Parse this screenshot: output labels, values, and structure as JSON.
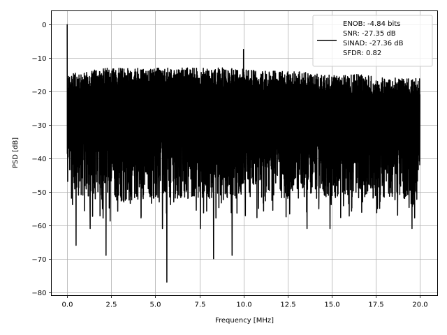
{
  "chart_data": {
    "type": "line",
    "title": "",
    "xlabel": "Frequency [MHz]",
    "ylabel": "PSD [dB]",
    "xlim": [
      -0.9,
      21.0
    ],
    "ylim": [
      -81,
      4
    ],
    "x_ticks": [
      0.0,
      2.5,
      5.0,
      7.5,
      10.0,
      12.5,
      15.0,
      17.5,
      20.0
    ],
    "x_tick_labels": [
      "0.0",
      "2.5",
      "5.0",
      "7.5",
      "10.0",
      "12.5",
      "15.0",
      "17.5",
      "20.0"
    ],
    "y_ticks": [
      0,
      -10,
      -20,
      -30,
      -40,
      -50,
      -60,
      -70,
      -80
    ],
    "y_tick_labels": [
      "0",
      "−10",
      "−20",
      "−30",
      "−40",
      "−50",
      "−60",
      "−70",
      "−80"
    ],
    "grid": true,
    "legend_position": "top-right",
    "series": [
      {
        "name": "ENOB: -4.84 bits\nSNR: -27.35 dB\nSINAD: -27.36 dB\nSFDR: 0.82",
        "color": "#000000",
        "x_range": [
          0,
          20
        ],
        "envelope_upper": [
          -15,
          -14,
          -13,
          -13,
          -13,
          -13,
          -13,
          -13,
          -13,
          -13,
          -14,
          -14,
          -14,
          -15,
          -15,
          -15,
          -16,
          -16,
          -16
        ],
        "envelope_lower_typical": [
          -50,
          -52,
          -53,
          -53,
          -52,
          -52,
          -52,
          -52,
          -52,
          -52,
          -52,
          -52,
          -52,
          -52,
          -52,
          -52,
          -52,
          -52,
          -52
        ],
        "peaks": [
          {
            "x": 0.0,
            "y": 0
          },
          {
            "x": 10.0,
            "y": -7.5
          }
        ],
        "notable_dips": [
          {
            "x": 0.5,
            "y": -66
          },
          {
            "x": 1.3,
            "y": -61
          },
          {
            "x": 2.2,
            "y": -69
          },
          {
            "x": 5.4,
            "y": -61
          },
          {
            "x": 5.65,
            "y": -77
          },
          {
            "x": 7.55,
            "y": -61
          },
          {
            "x": 8.3,
            "y": -70
          },
          {
            "x": 9.35,
            "y": -69
          },
          {
            "x": 13.6,
            "y": -61
          },
          {
            "x": 14.9,
            "y": -61
          },
          {
            "x": 19.55,
            "y": -61
          }
        ]
      }
    ]
  }
}
